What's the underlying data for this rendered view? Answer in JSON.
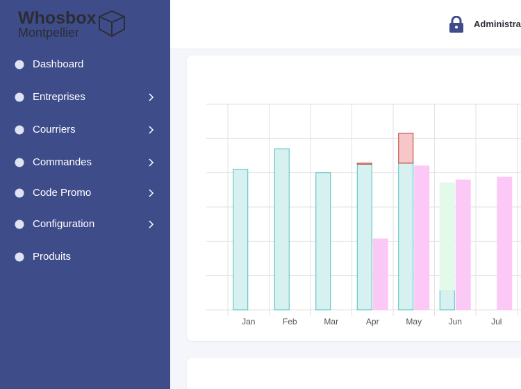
{
  "sidebar": {
    "logo": {
      "title": "Whosbox",
      "subtitle": "Montpellier"
    },
    "menu": [
      {
        "label": "Dashboard",
        "submenu": false
      },
      {
        "label": "Entreprises",
        "submenu": true
      },
      {
        "label": "Courriers",
        "submenu": true
      },
      {
        "label": "Commandes",
        "submenu": true
      },
      {
        "label": "Code Promo",
        "submenu": true
      },
      {
        "label": "Configuration",
        "submenu": true
      },
      {
        "label": "Produits",
        "submenu": false
      }
    ]
  },
  "header": {
    "user": "Administrateur"
  },
  "chart_data": {
    "type": "bar",
    "stacked": true,
    "categories": [
      "Jan",
      "Feb",
      "Mar",
      "Apr",
      "May",
      "Jun",
      "Jul"
    ],
    "ylim": [
      0,
      6
    ],
    "yticks": [
      0,
      1,
      2,
      3,
      4,
      5,
      6
    ],
    "grid": true,
    "series": [
      {
        "color": "#4bc0c0",
        "fill": "#d7f1f1",
        "stack": 0,
        "values": [
          4.1,
          4.7,
          4.0,
          4.25,
          4.28,
          0.57,
          null
        ]
      },
      {
        "color": "#c0392b",
        "fill": "#f6c6c8",
        "stack": 0,
        "values": [
          null,
          null,
          null,
          0.03,
          0.87,
          null,
          null
        ]
      },
      {
        "color": "#e3f9e9",
        "fill": "#e3f9e9",
        "stack": 0,
        "values": [
          null,
          null,
          null,
          null,
          null,
          3.14,
          null
        ]
      },
      {
        "color": "#fcc8f5",
        "fill": "#fcc8f5",
        "stack": 1,
        "values": [
          null,
          null,
          null,
          2.07,
          4.2,
          3.79,
          3.87
        ]
      }
    ]
  }
}
